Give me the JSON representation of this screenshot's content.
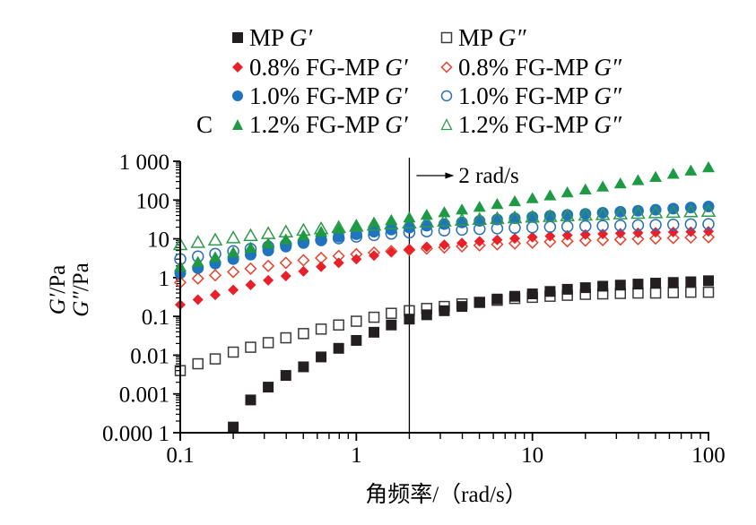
{
  "chart_data": {
    "type": "scatter",
    "panel_label": "C",
    "title": "",
    "xlabel": "角频率/（rad/s）",
    "ylabel_lines": [
      "G′/Pa",
      "G″/Pa"
    ],
    "xscale": "log",
    "yscale": "log",
    "xlim": [
      0.1,
      100
    ],
    "ylim": [
      0.0001,
      1000
    ],
    "x_ticks": [
      0.1,
      1,
      10,
      100
    ],
    "x_tick_labels": [
      "0.1",
      "1",
      "10",
      "100"
    ],
    "y_ticks": [
      0.0001,
      0.001,
      0.01,
      0.1,
      1,
      10,
      100,
      1000
    ],
    "y_tick_labels": [
      "0.000 1",
      "0.001",
      "0.01",
      "0.1",
      "1",
      "10",
      "100",
      "1 000"
    ],
    "grid": false,
    "legend_position": "top",
    "annotation": {
      "text": "2 rad/s",
      "x": 2,
      "arrow": "→"
    },
    "x": [
      0.1,
      0.126,
      0.158,
      0.2,
      0.251,
      0.316,
      0.398,
      0.501,
      0.631,
      0.794,
      1,
      1.26,
      1.58,
      2,
      2.51,
      3.16,
      3.98,
      5.01,
      6.31,
      7.94,
      10,
      12.6,
      15.8,
      20,
      25.1,
      31.6,
      39.8,
      50.1,
      63.1,
      79.4,
      100
    ],
    "series": [
      {
        "name": "MP G′",
        "prefix": "MP ",
        "modulus": "G′",
        "marker": "square",
        "filled": true,
        "color": "#231f20",
        "values": [
          null,
          null,
          null,
          0.00014,
          0.0007,
          0.0015,
          0.003,
          0.005,
          0.009,
          0.015,
          0.024,
          0.039,
          0.06,
          0.085,
          0.11,
          0.14,
          0.18,
          0.23,
          0.28,
          0.33,
          0.38,
          0.44,
          0.5,
          0.55,
          0.6,
          0.64,
          0.68,
          0.72,
          0.75,
          0.78,
          0.83
        ]
      },
      {
        "name": "MP G″",
        "prefix": "MP ",
        "modulus": "G″",
        "marker": "square",
        "filled": false,
        "color": "#3a3a3a",
        "values": [
          0.004,
          0.006,
          0.008,
          0.012,
          0.016,
          0.021,
          0.028,
          0.036,
          0.047,
          0.06,
          0.075,
          0.095,
          0.12,
          0.14,
          0.16,
          0.18,
          0.21,
          0.23,
          0.26,
          0.29,
          0.31,
          0.33,
          0.35,
          0.37,
          0.38,
          0.39,
          0.4,
          0.4,
          0.41,
          0.42,
          0.42
        ]
      },
      {
        "name": "0.8% FG-MP G′",
        "prefix": "0.8% FG-MP ",
        "modulus": "G′",
        "marker": "diamond",
        "filled": true,
        "color": "#e8202a",
        "values": [
          0.2,
          0.27,
          0.36,
          0.48,
          0.65,
          0.85,
          1.1,
          1.45,
          1.9,
          2.4,
          3.0,
          3.7,
          4.5,
          5.3,
          6.2,
          7.0,
          7.8,
          8.6,
          9.4,
          10.2,
          11,
          11.7,
          12.3,
          12.9,
          13.4,
          13.9,
          14.3,
          14.7,
          15,
          15.3,
          15.6
        ]
      },
      {
        "name": "0.8% FG-MP G″",
        "prefix": "0.8% FG-MP ",
        "modulus": "G″",
        "marker": "diamond",
        "filled": false,
        "color": "#e8402a",
        "values": [
          0.75,
          0.95,
          1.15,
          1.4,
          1.7,
          2.0,
          2.4,
          2.8,
          3.2,
          3.6,
          4.0,
          4.4,
          4.8,
          5.2,
          5.6,
          6.0,
          6.4,
          6.8,
          7.2,
          7.6,
          8.0,
          8.4,
          8.7,
          9.0,
          9.3,
          9.6,
          9.9,
          10.2,
          10.5,
          10.8,
          11.0
        ]
      },
      {
        "name": "1.0% FG-MP G′",
        "prefix": "1.0% FG-MP ",
        "modulus": "G′",
        "marker": "circle",
        "filled": true,
        "color": "#1f74bd",
        "values": [
          1.3,
          1.75,
          2.3,
          3.0,
          3.9,
          5.0,
          6.3,
          7.8,
          9.5,
          11.3,
          13.2,
          15.2,
          17.3,
          19.5,
          21.8,
          24,
          26.5,
          29,
          31.5,
          34,
          36.5,
          39,
          41.5,
          44,
          47,
          50,
          53,
          56,
          60,
          64,
          68
        ]
      },
      {
        "name": "1.0% FG-MP G″",
        "prefix": "1.0% FG-MP ",
        "modulus": "G″",
        "marker": "circle",
        "filled": false,
        "color": "#2a6fb8",
        "values": [
          3.0,
          3.5,
          4.1,
          4.8,
          5.5,
          6.3,
          7.2,
          8.2,
          9.2,
          10.3,
          11.4,
          12.5,
          13.6,
          14.6,
          15.6,
          16.4,
          17.2,
          17.9,
          18.6,
          19.2,
          19.8,
          20.3,
          20.8,
          21.2,
          21.6,
          22,
          22.4,
          22.8,
          23.2,
          23.6,
          24
        ]
      },
      {
        "name": "1.2% FG-MP G′",
        "prefix": "1.2% FG-MP ",
        "modulus": "G′",
        "marker": "triangle",
        "filled": true,
        "color": "#1e9a44",
        "values": [
          1.9,
          2.5,
          3.3,
          4.4,
          5.8,
          7.5,
          9.5,
          12,
          15,
          18,
          22,
          26,
          30,
          35,
          41,
          48,
          56,
          66,
          78,
          92,
          110,
          130,
          155,
          185,
          220,
          265,
          320,
          390,
          470,
          570,
          690
        ]
      },
      {
        "name": "1.2% FG-MP G″",
        "prefix": "1.2% FG-MP ",
        "modulus": "G″",
        "marker": "triangle",
        "filled": false,
        "color": "#2f9a4a",
        "values": [
          7.0,
          8.0,
          9.2,
          10.5,
          12,
          13.5,
          15,
          16.5,
          18,
          19.5,
          21,
          22.5,
          24,
          25.5,
          27,
          28.5,
          30,
          31.5,
          33,
          34.5,
          36,
          37.5,
          39,
          40.5,
          42,
          43.5,
          45,
          46.5,
          48,
          49.5,
          51
        ]
      }
    ]
  }
}
